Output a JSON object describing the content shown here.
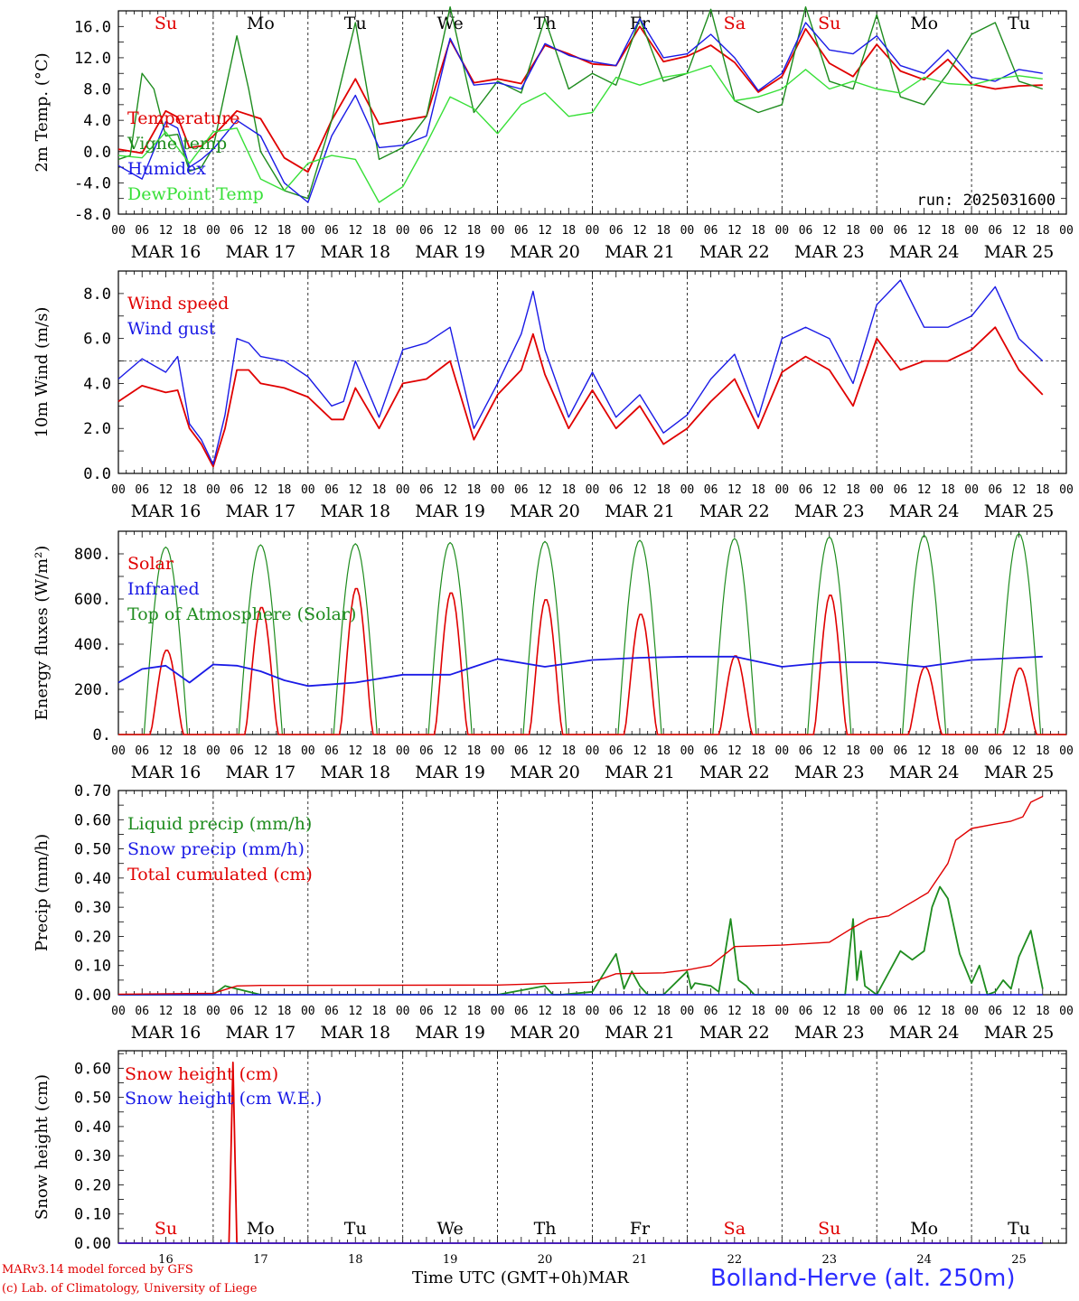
{
  "run_label": "run: 2025031600",
  "footer": {
    "model": "MARv3.14 model forced by GFS",
    "credit": "(c) Lab. of Climatology, University of Liege",
    "time_label": "Time UTC (GMT+0h)",
    "month": "MAR",
    "station": "Bolland-Herve (alt. 250m)"
  },
  "hour_ticks": [
    "00",
    "06",
    "12",
    "18"
  ],
  "final_hour_tick": "00",
  "dates": [
    "MAR 16",
    "MAR 17",
    "MAR 18",
    "MAR 19",
    "MAR 20",
    "MAR 21",
    "MAR 22",
    "MAR 23",
    "MAR 24",
    "MAR 25"
  ],
  "day_numbers": [
    "16",
    "17",
    "18",
    "19",
    "20",
    "21",
    "22",
    "23",
    "24",
    "25"
  ],
  "weekdays": [
    "Su",
    "Mo",
    "Tu",
    "We",
    "Th",
    "Fr",
    "Sa",
    "Su",
    "Mo",
    "Tu"
  ],
  "weekday_colors": [
    "#e00000",
    "#000000",
    "#000000",
    "#000000",
    "#000000",
    "#000000",
    "#e00000",
    "#e00000",
    "#000000",
    "#000000"
  ],
  "chart_data": [
    {
      "type": "line",
      "ylabel": "2m Temp. (°C)",
      "ylim": [
        -8,
        18
      ],
      "yticks": [
        "-8.0",
        "-4.0",
        "0.0",
        "4.0",
        "8.0",
        "12.0",
        "16.0"
      ],
      "ytick_values": [
        -8,
        -4,
        0,
        4,
        8,
        12,
        16
      ],
      "ref_line": 0,
      "x_unit": "hours since MAR 16 00 UTC",
      "series": [
        {
          "name": "Temperature",
          "color": "#e00000",
          "x": [
            0,
            6,
            12,
            15,
            18,
            21,
            24,
            30,
            36,
            42,
            48,
            54,
            60,
            66,
            72,
            78,
            84,
            90,
            96,
            102,
            108,
            114,
            120,
            126,
            132,
            138,
            144,
            150,
            156,
            162,
            168,
            174,
            180,
            186,
            192,
            198,
            204,
            210,
            216,
            222,
            228,
            234
          ],
          "y": [
            0.3,
            -0.2,
            5.2,
            4.4,
            0.5,
            0.7,
            2.0,
            5.2,
            4.2,
            -0.8,
            -2.6,
            4.0,
            9.3,
            3.5,
            4.0,
            4.5,
            14.3,
            8.8,
            9.3,
            8.7,
            13.6,
            12.5,
            11.2,
            11.0,
            16.0,
            11.5,
            12.2,
            13.6,
            11.4,
            7.6,
            9.6,
            15.7,
            11.3,
            9.6,
            13.7,
            10.3,
            9.2,
            11.8,
            8.6,
            8.0,
            8.4,
            8.5
          ]
        },
        {
          "name": "Vigne temp",
          "color": "#1e8c1e",
          "x": [
            0,
            3,
            6,
            9,
            12,
            15,
            18,
            21,
            24,
            30,
            33,
            36,
            42,
            48,
            54,
            60,
            66,
            72,
            78,
            84,
            90,
            96,
            102,
            108,
            114,
            120,
            126,
            132,
            138,
            144,
            150,
            156,
            162,
            168,
            174,
            180,
            186,
            192,
            198,
            204,
            210,
            216,
            222,
            228,
            234
          ],
          "y": [
            -1.0,
            -0.5,
            10.0,
            8.0,
            2.0,
            2.2,
            -2.5,
            -2.0,
            0.5,
            14.8,
            8.0,
            0.0,
            -5.0,
            -6.0,
            4.0,
            16.5,
            -1.0,
            0.5,
            4.5,
            18.5,
            5.0,
            9.0,
            7.5,
            17.0,
            8.0,
            10.0,
            8.5,
            17.0,
            9.0,
            10.0,
            18.2,
            6.5,
            5.0,
            6.0,
            18.5,
            9.0,
            8.0,
            17.5,
            7.0,
            6.0,
            10.0,
            15.0,
            16.5,
            9.0,
            8.0
          ]
        },
        {
          "name": "Humidex",
          "color": "#1a1ae6",
          "x": [
            0,
            6,
            12,
            15,
            18,
            21,
            24,
            30,
            36,
            42,
            48,
            54,
            60,
            66,
            72,
            78,
            84,
            90,
            96,
            102,
            108,
            114,
            120,
            126,
            132,
            138,
            144,
            150,
            156,
            162,
            168,
            174,
            180,
            186,
            192,
            198,
            204,
            210,
            216,
            222,
            228,
            234
          ],
          "y": [
            -1.8,
            -3.5,
            3.8,
            3.0,
            -2.0,
            -1.0,
            0.3,
            4.0,
            2.0,
            -4.0,
            -6.5,
            2.0,
            7.2,
            0.5,
            0.8,
            2.0,
            14.5,
            8.5,
            8.8,
            8.0,
            13.8,
            12.3,
            11.5,
            11.0,
            17.0,
            12.0,
            12.5,
            15.0,
            12.0,
            7.8,
            10.0,
            16.5,
            13.0,
            12.5,
            14.8,
            11.0,
            10.0,
            13.0,
            9.5,
            9.0,
            10.5,
            10.0
          ]
        },
        {
          "name": "DewPoint Temp",
          "color": "#38e038",
          "x": [
            0,
            6,
            12,
            18,
            24,
            30,
            36,
            42,
            48,
            54,
            60,
            66,
            72,
            78,
            84,
            90,
            96,
            102,
            108,
            114,
            120,
            126,
            132,
            138,
            144,
            150,
            156,
            162,
            168,
            174,
            180,
            186,
            192,
            198,
            204,
            210,
            216,
            222,
            228,
            234
          ],
          "y": [
            -0.5,
            -0.8,
            2.5,
            -1.5,
            2.5,
            3.0,
            -3.5,
            -5.0,
            -1.5,
            -0.5,
            -1.0,
            -6.5,
            -4.5,
            1.0,
            7.0,
            5.5,
            2.3,
            6.0,
            7.5,
            4.5,
            5.0,
            9.5,
            8.5,
            9.5,
            10.0,
            11.0,
            6.5,
            7.0,
            8.0,
            10.5,
            8.0,
            9.0,
            8.0,
            7.5,
            9.5,
            8.7,
            8.5,
            9.3,
            9.7,
            9.3
          ]
        }
      ]
    },
    {
      "type": "line",
      "ylabel": "10m Wind (m/s)",
      "ylim": [
        0,
        9
      ],
      "yticks": [
        "0.0",
        "2.0",
        "4.0",
        "6.0",
        "8.0"
      ],
      "ytick_values": [
        0,
        2,
        4,
        6,
        8
      ],
      "ref_line": 5,
      "x_unit": "hours since MAR 16 00 UTC",
      "series": [
        {
          "name": "Wind speed",
          "color": "#e00000",
          "x": [
            0,
            6,
            12,
            15,
            18,
            21,
            24,
            27,
            30,
            33,
            36,
            42,
            48,
            54,
            57,
            60,
            66,
            72,
            78,
            84,
            90,
            96,
            102,
            105,
            108,
            114,
            120,
            126,
            132,
            138,
            144,
            150,
            156,
            162,
            168,
            174,
            180,
            186,
            192,
            198,
            204,
            210,
            216,
            222,
            228,
            234
          ],
          "y": [
            3.2,
            3.9,
            3.6,
            3.7,
            2.0,
            1.3,
            0.3,
            2.0,
            4.6,
            4.6,
            4.0,
            3.8,
            3.4,
            2.4,
            2.4,
            3.8,
            2.0,
            4.0,
            4.2,
            5.0,
            1.5,
            3.5,
            4.6,
            6.2,
            4.4,
            2.0,
            3.7,
            2.0,
            3.0,
            1.3,
            2.0,
            3.2,
            4.2,
            2.0,
            4.5,
            5.2,
            4.6,
            3.0,
            6.0,
            4.6,
            5.0,
            5.0,
            5.5,
            6.5,
            4.6,
            3.5
          ]
        },
        {
          "name": "Wind gust",
          "color": "#1a1ae6",
          "x": [
            0,
            6,
            12,
            15,
            18,
            21,
            24,
            27,
            30,
            33,
            36,
            42,
            48,
            54,
            57,
            60,
            66,
            72,
            78,
            84,
            90,
            96,
            102,
            105,
            108,
            114,
            120,
            126,
            132,
            138,
            144,
            150,
            156,
            162,
            168,
            174,
            180,
            186,
            192,
            198,
            204,
            210,
            216,
            222,
            228,
            234
          ],
          "y": [
            4.2,
            5.1,
            4.5,
            5.2,
            2.2,
            1.5,
            0.4,
            2.6,
            6.0,
            5.8,
            5.2,
            5.0,
            4.3,
            3.0,
            3.2,
            5.0,
            2.5,
            5.5,
            5.8,
            6.5,
            2.0,
            4.0,
            6.2,
            8.1,
            5.5,
            2.5,
            4.5,
            2.5,
            3.5,
            1.8,
            2.6,
            4.2,
            5.3,
            2.5,
            6.0,
            6.5,
            6.0,
            4.0,
            7.5,
            8.6,
            6.5,
            6.5,
            7.0,
            8.3,
            6.0,
            5.0
          ]
        }
      ]
    },
    {
      "type": "line",
      "ylabel": "Energy fluxes (W/m²)",
      "ylim": [
        0,
        900
      ],
      "yticks": [
        "0.",
        "200.",
        "400.",
        "600.",
        "800."
      ],
      "ytick_values": [
        0,
        200,
        400,
        600,
        800
      ],
      "x_unit": "hours since MAR 16 00 UTC",
      "toa_peaks": [
        830,
        840,
        845,
        850,
        855,
        860,
        868,
        875,
        882,
        890
      ],
      "solar_peaks": [
        375,
        565,
        650,
        630,
        600,
        535,
        350,
        620,
        300,
        295
      ],
      "series": [
        {
          "name": "Solar",
          "color": "#e00000"
        },
        {
          "name": "Infrared",
          "color": "#1a1ae6",
          "x": [
            0,
            6,
            12,
            18,
            24,
            30,
            36,
            42,
            48,
            60,
            72,
            84,
            96,
            108,
            120,
            132,
            144,
            156,
            168,
            180,
            192,
            204,
            216,
            234
          ],
          "y": [
            230,
            290,
            305,
            230,
            310,
            305,
            280,
            240,
            215,
            230,
            265,
            265,
            335,
            300,
            330,
            340,
            345,
            345,
            300,
            320,
            320,
            300,
            330,
            345
          ]
        },
        {
          "name": "Top of Atmosphere (Solar)",
          "color": "#1e8c1e"
        }
      ]
    },
    {
      "type": "line",
      "ylabel": "Precip (mm/h)",
      "ylim": [
        0,
        0.7
      ],
      "yticks": [
        "0.00",
        "0.10",
        "0.20",
        "0.30",
        "0.40",
        "0.50",
        "0.60",
        "0.70"
      ],
      "ytick_values": [
        0,
        0.1,
        0.2,
        0.3,
        0.4,
        0.5,
        0.6,
        0.7
      ],
      "x_unit": "hours since MAR 16 00 UTC",
      "series": [
        {
          "name": "Liquid precip (mm/h)",
          "color": "#1e8c1e",
          "x": [
            0,
            24,
            27,
            30,
            33,
            36,
            96,
            108,
            110,
            112,
            120,
            126,
            128,
            130,
            132,
            134,
            138,
            144,
            145,
            146,
            150,
            152,
            155,
            157,
            159,
            161,
            168,
            184,
            186,
            187,
            188,
            189,
            192,
            198,
            201,
            204,
            206,
            208,
            210,
            213,
            216,
            218,
            220,
            222,
            224,
            226,
            228,
            231,
            234
          ],
          "y": [
            0,
            0,
            0.03,
            0.02,
            0.01,
            0,
            0,
            0.03,
            0,
            0,
            0.01,
            0.14,
            0.02,
            0.08,
            0.03,
            0.0,
            0,
            0.08,
            0.02,
            0.04,
            0.03,
            0.01,
            0.26,
            0.05,
            0.03,
            0.0,
            0,
            0,
            0.26,
            0.05,
            0.15,
            0.03,
            0.0,
            0.15,
            0.12,
            0.15,
            0.3,
            0.37,
            0.33,
            0.14,
            0.04,
            0.1,
            0.0,
            0.01,
            0.05,
            0.02,
            0.13,
            0.22,
            0.02
          ]
        },
        {
          "name": "Snow precip (mm/h)",
          "color": "#1a1ae6",
          "x": [
            0,
            234
          ],
          "y": [
            0,
            0
          ]
        },
        {
          "name": "Total cumulated (cm)",
          "color": "#e00000",
          "x": [
            0,
            24,
            30,
            36,
            96,
            120,
            126,
            138,
            144,
            150,
            156,
            168,
            180,
            186,
            190,
            195,
            205,
            210,
            212,
            216,
            222,
            226,
            229,
            231,
            234
          ],
          "y": [
            0.002,
            0.005,
            0.03,
            0.032,
            0.033,
            0.043,
            0.072,
            0.075,
            0.085,
            0.1,
            0.165,
            0.17,
            0.18,
            0.23,
            0.26,
            0.27,
            0.35,
            0.45,
            0.53,
            0.57,
            0.585,
            0.595,
            0.61,
            0.66,
            0.68
          ]
        }
      ]
    },
    {
      "type": "line",
      "ylabel": "Snow height (cm)",
      "ylim": [
        0,
        0.66
      ],
      "yticks": [
        "0.00",
        "0.10",
        "0.20",
        "0.30",
        "0.40",
        "0.50",
        "0.60"
      ],
      "ytick_values": [
        0,
        0.1,
        0.2,
        0.3,
        0.4,
        0.5,
        0.6
      ],
      "x_unit": "hours since MAR 16 00 UTC",
      "series": [
        {
          "name": "Snow height (cm)",
          "color": "#e00000",
          "x": [
            0,
            28,
            29,
            30,
            234
          ],
          "y": [
            0,
            0,
            0.62,
            0,
            0
          ]
        },
        {
          "name": "Snow height (cm W.E.)",
          "color": "#1a1ae6",
          "x": [
            0,
            234
          ],
          "y": [
            0,
            0
          ]
        }
      ]
    }
  ]
}
